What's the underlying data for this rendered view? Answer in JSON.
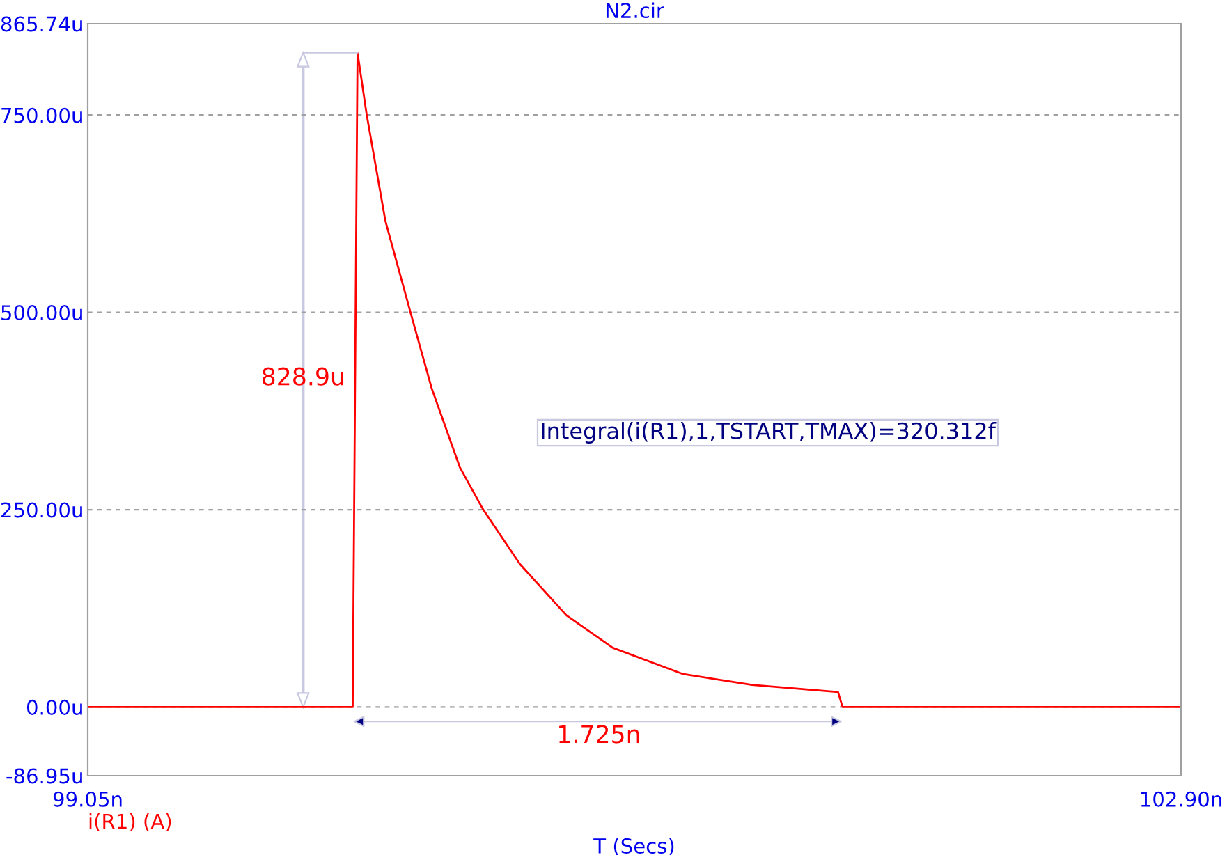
{
  "chart_data": {
    "type": "line",
    "title": "N2.cir",
    "xlabel": "T (Secs)",
    "xlim": [
      99.05,
      102.9
    ],
    "xticks": [
      {
        "value": 99.05,
        "label": "99.05n"
      },
      {
        "value": 102.9,
        "label": "102.90n"
      }
    ],
    "ylim": [
      -86.95,
      865.74
    ],
    "yticks": [
      {
        "value": -86.95,
        "label": "-86.95u"
      },
      {
        "value": 0,
        "label": "0.00u"
      },
      {
        "value": 250,
        "label": "250.00u"
      },
      {
        "value": 500,
        "label": "500.00u"
      },
      {
        "value": 750,
        "label": "750.00u"
      },
      {
        "value": 865.74,
        "label": "865.74u"
      }
    ],
    "grid": "y",
    "legend": "bottom left",
    "series": [
      {
        "name": "i(R1) (A)",
        "color": "#ff0000",
        "x": [
          99.05,
          99.983,
          100.0,
          100.032,
          100.098,
          100.188,
          100.261,
          100.36,
          100.441,
          100.572,
          100.736,
          100.899,
          101.144,
          101.389,
          101.692,
          101.708,
          102.9
        ],
        "values": [
          0,
          0,
          829,
          751,
          616,
          498,
          404,
          304,
          251,
          181,
          116,
          75,
          42,
          28,
          19,
          0,
          0
        ]
      }
    ],
    "annotations": [
      "828.9u",
      "1.725n",
      "Integral(i(R1),1,TSTART,TMAX)=320.312f"
    ]
  }
}
